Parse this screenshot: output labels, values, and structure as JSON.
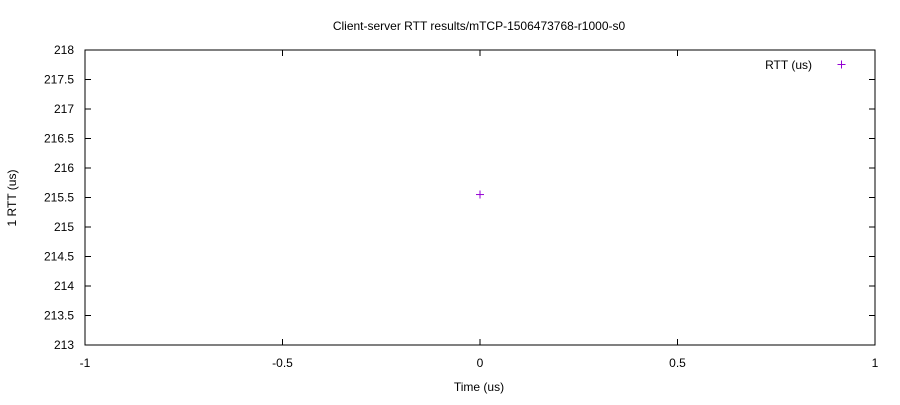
{
  "chart_data": {
    "type": "scatter",
    "title": "Client-server RTT results/mTCP-1506473768-r1000-s0",
    "xlabel": "Time (us)",
    "ylabel": "1 RTT (us)",
    "xlim": [
      -1,
      1
    ],
    "ylim": [
      213,
      218
    ],
    "xticks": [
      -1,
      -0.5,
      0,
      0.5,
      1
    ],
    "xtick_labels": [
      "-1",
      "-0.5",
      "0",
      "0.5",
      "1"
    ],
    "yticks": [
      213,
      213.5,
      214,
      214.5,
      215,
      215.5,
      216,
      216.5,
      217,
      217.5,
      218
    ],
    "ytick_labels": [
      "213",
      "213.5",
      "214",
      "214.5",
      "215",
      "215.5",
      "216",
      "216.5",
      "217",
      "217.5",
      "218"
    ],
    "grid": false,
    "legend_position": "top-right",
    "series": [
      {
        "name": "RTT (us)",
        "color": "#9400d3",
        "marker": "plus",
        "points": [
          {
            "x": 0,
            "y": 215.55
          }
        ]
      }
    ]
  }
}
